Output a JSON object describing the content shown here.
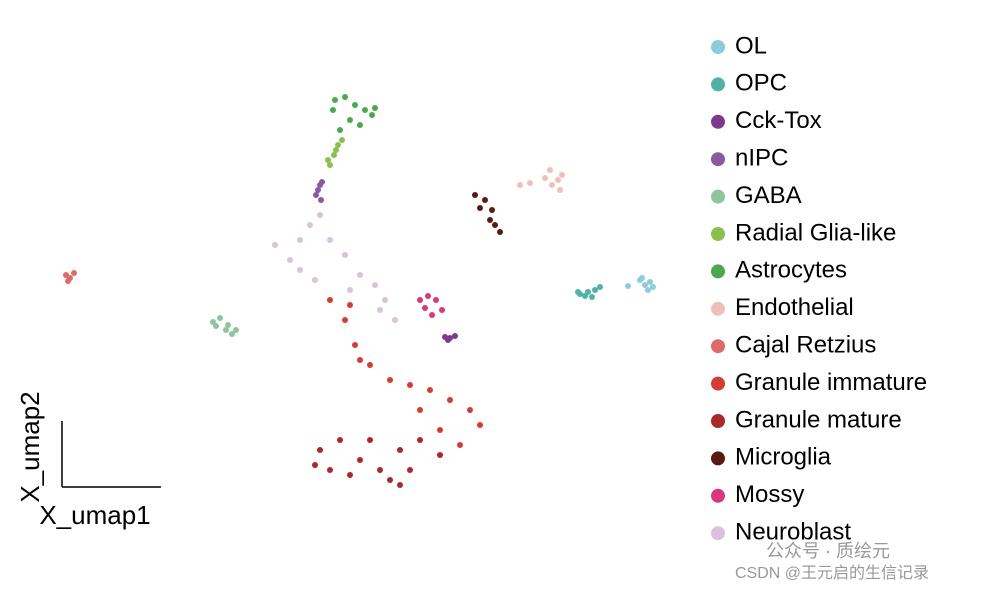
{
  "chart_data": {
    "type": "scatter",
    "x_label": "X_umap1",
    "y_label": "X_umap2",
    "xlim": [
      0,
      680
    ],
    "ylim": [
      592,
      0
    ],
    "series": [
      {
        "name": "OL",
        "color": "#8ccddb",
        "x": [
          640,
          645,
          650,
          648,
          653,
          642,
          628
        ],
        "y": [
          280,
          285,
          282,
          290,
          287,
          278,
          286
        ]
      },
      {
        "name": "OPC",
        "color": "#4fb3a9",
        "x": [
          580,
          588,
          595,
          600,
          585,
          592,
          578
        ],
        "y": [
          294,
          292,
          290,
          287,
          296,
          297,
          292
        ]
      },
      {
        "name": "Cck-Tox",
        "color": "#7d3a8c",
        "x": [
          445,
          450,
          455,
          448
        ],
        "y": [
          337,
          338,
          336,
          340
        ]
      },
      {
        "name": "nIPC",
        "color": "#8a5a9e",
        "x": [
          318,
          320,
          316,
          322,
          321
        ],
        "y": [
          190,
          185,
          195,
          182,
          200
        ]
      },
      {
        "name": "GABA",
        "color": "#8fc59a",
        "x": [
          213,
          220,
          226,
          232,
          216,
          236,
          228
        ],
        "y": [
          322,
          318,
          330,
          334,
          326,
          330,
          325
        ]
      },
      {
        "name": "Radial Glia-like",
        "color": "#8bc04f",
        "x": [
          330,
          334,
          338,
          342,
          328,
          336
        ],
        "y": [
          165,
          155,
          145,
          140,
          160,
          150
        ]
      },
      {
        "name": "Astrocytes",
        "color": "#4ba84f",
        "x": [
          335,
          345,
          355,
          365,
          372,
          350,
          340,
          360,
          333,
          375
        ],
        "y": [
          100,
          97,
          105,
          110,
          115,
          120,
          130,
          125,
          110,
          108
        ]
      },
      {
        "name": "Endothelial",
        "color": "#f0c0b8",
        "x": [
          550,
          558,
          560,
          552,
          545,
          530,
          520,
          562
        ],
        "y": [
          170,
          180,
          190,
          185,
          178,
          183,
          185,
          175
        ]
      },
      {
        "name": "Cajal Retzius",
        "color": "#dd6a6a",
        "x": [
          66,
          70,
          74,
          68
        ],
        "y": [
          275,
          278,
          273,
          281
        ]
      },
      {
        "name": "Granule immature",
        "color": "#d43d35",
        "x": [
          330,
          345,
          355,
          370,
          390,
          410,
          430,
          450,
          470,
          480,
          440,
          460,
          420,
          350,
          360
        ],
        "y": [
          300,
          320,
          345,
          365,
          380,
          385,
          390,
          400,
          410,
          425,
          430,
          445,
          410,
          305,
          360
        ]
      },
      {
        "name": "Granule mature",
        "color": "#a82a2a",
        "x": [
          320,
          340,
          360,
          380,
          400,
          420,
          330,
          350,
          390,
          410,
          440,
          370,
          315,
          400
        ],
        "y": [
          450,
          440,
          460,
          470,
          450,
          440,
          470,
          475,
          480,
          470,
          455,
          440,
          465,
          485
        ]
      },
      {
        "name": "Microglia",
        "color": "#5a1a14",
        "x": [
          475,
          485,
          492,
          480,
          495,
          500,
          490
        ],
        "y": [
          195,
          200,
          210,
          208,
          225,
          232,
          220
        ]
      },
      {
        "name": "Mossy",
        "color": "#d63a78",
        "x": [
          420,
          428,
          436,
          442,
          425,
          432
        ],
        "y": [
          300,
          296,
          300,
          310,
          308,
          315
        ]
      },
      {
        "name": "Neuroblast",
        "color": "#dcc0dc",
        "x": [
          275,
          290,
          300,
          310,
          320,
          330,
          345,
          360,
          375,
          385,
          300,
          315,
          350,
          395,
          380
        ],
        "y": [
          245,
          260,
          270,
          225,
          215,
          240,
          255,
          275,
          285,
          300,
          240,
          280,
          290,
          320,
          310
        ]
      }
    ]
  },
  "watermark": {
    "line1": "公众号 · 质绘元",
    "line2": "CSDN @王元启的生信记录"
  }
}
